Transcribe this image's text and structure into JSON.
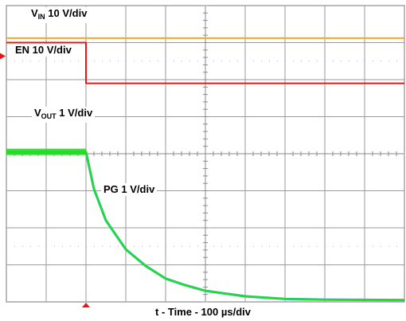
{
  "chart_data": {
    "type": "line",
    "title": "",
    "xlabel": "t - Time - 100 µs/div",
    "x_divisions": 10,
    "y_divisions": 8,
    "x_range_us": [
      0,
      1000
    ],
    "grid": true,
    "event_time_us": 200,
    "channels": [
      {
        "name": "VIN",
        "label_main": "V",
        "label_sub": "IN",
        "label_rest": " 10 V/div",
        "color": "#f5a623",
        "x": [
          0,
          1000
        ],
        "y_div": [
          7.12,
          7.12
        ]
      },
      {
        "name": "EN",
        "label_main": "EN",
        "label_sub": "",
        "label_rest": " 10 V/div",
        "color": "#e01818",
        "x": [
          0,
          200,
          200,
          1000
        ],
        "y_div": [
          7.0,
          7.0,
          5.9,
          5.9
        ]
      },
      {
        "name": "VOUT",
        "label_main": "V",
        "label_sub": "OUT",
        "label_rest": " 1 V/div",
        "color": "#22dd22",
        "x": [
          0,
          200,
          220,
          250,
          300,
          350,
          400,
          450,
          500,
          600,
          700,
          800,
          1000
        ],
        "y_div": [
          4.05,
          4.05,
          3.05,
          2.2,
          1.42,
          0.97,
          0.63,
          0.45,
          0.3,
          0.15,
          0.08,
          0.06,
          0.05
        ]
      },
      {
        "name": "PG",
        "label_main": "PG",
        "label_sub": "",
        "label_rest": " 1 V/div",
        "color": "#44aaff",
        "x": [
          0,
          200,
          220,
          250,
          300,
          350,
          400,
          450,
          500,
          600,
          700,
          800,
          1000
        ],
        "y_div": [
          4.05,
          4.05,
          3.05,
          2.2,
          1.42,
          0.97,
          0.63,
          0.45,
          0.3,
          0.15,
          0.08,
          0.06,
          0.05
        ]
      }
    ]
  }
}
